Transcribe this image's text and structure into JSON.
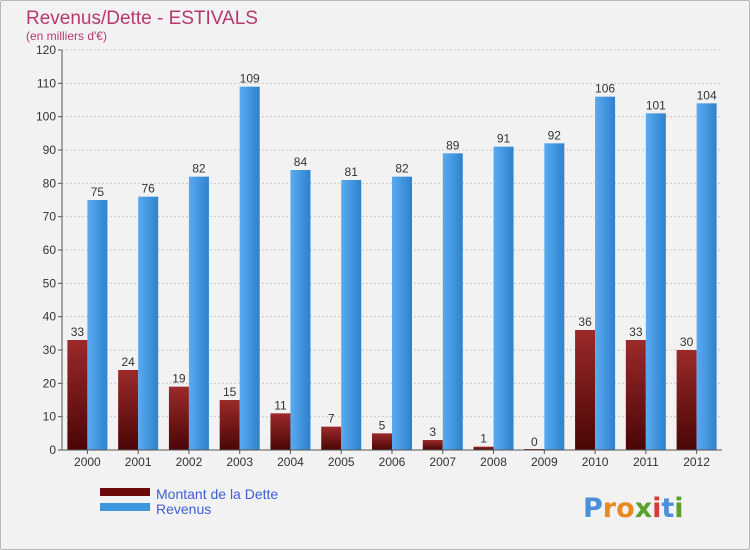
{
  "chart_data": {
    "type": "bar",
    "title": "Revenus/Dette - ESTIVALS",
    "subtitle": "(en milliers d'€)",
    "categories": [
      "2000",
      "2001",
      "2002",
      "2003",
      "2004",
      "2005",
      "2006",
      "2007",
      "2008",
      "2009",
      "2010",
      "2011",
      "2012"
    ],
    "series": [
      {
        "name": "Montant de la Dette",
        "color": "#7a1414",
        "values": [
          33,
          24,
          19,
          15,
          11,
          7,
          5,
          3,
          1,
          0,
          36,
          33,
          30
        ]
      },
      {
        "name": "Revenus",
        "color": "#3d97de",
        "values": [
          75,
          76,
          82,
          109,
          84,
          81,
          82,
          89,
          91,
          92,
          106,
          101,
          104
        ]
      }
    ],
    "ylim": [
      0,
      120
    ],
    "yticks": [
      0,
      10,
      20,
      30,
      40,
      50,
      60,
      70,
      80,
      90,
      100,
      110,
      120
    ],
    "grid": true,
    "legend": "bottom-left"
  },
  "logo": {
    "letters": [
      "P",
      "r",
      "o",
      "x",
      "i",
      "t",
      "i"
    ],
    "colors": [
      "#4a90d9",
      "#e98a1f",
      "#e98a1f",
      "#5aa02c",
      "#d83a3a",
      "#4a90d9",
      "#5aa02c"
    ]
  }
}
